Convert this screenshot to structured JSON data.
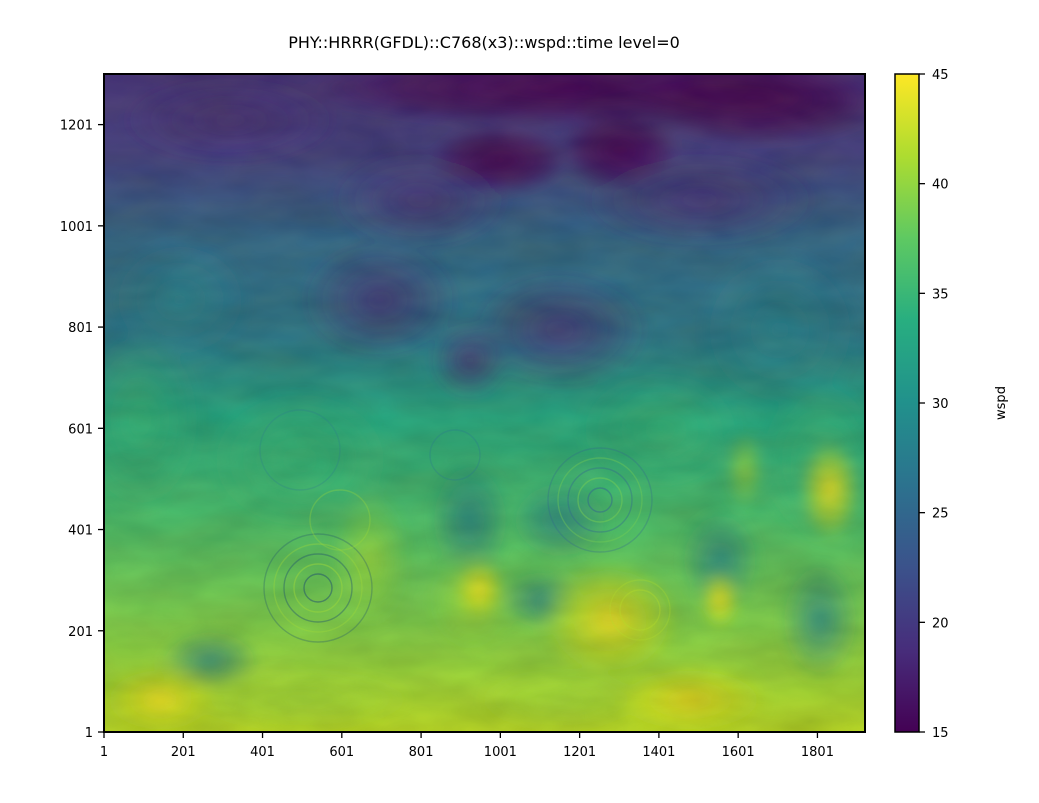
{
  "chart_data": {
    "type": "heatmap",
    "title": "PHY::HRRR(GFDL)::C768(x3)::wspd::time level=0",
    "xlabel": "",
    "ylabel": "",
    "xlim": [
      1,
      1921
    ],
    "ylim": [
      1,
      1301
    ],
    "x_ticks": [
      "1",
      "201",
      "401",
      "601",
      "801",
      "1001",
      "1201",
      "1401",
      "1601",
      "1801"
    ],
    "y_ticks": [
      "1",
      "201",
      "401",
      "601",
      "801",
      "1001",
      "1201"
    ],
    "colorbar": {
      "label": "wspd",
      "range": [
        15,
        45
      ],
      "ticks": [
        "15",
        "20",
        "25",
        "30",
        "35",
        "40",
        "45"
      ],
      "colormap": "viridis"
    },
    "field_description": "wind speed field: low values (15-20) along the top, increasing toward the bottom with maxima near 45; ring-shaped wave patterns near x≈601,y≈301 and x≈1301,y≈501",
    "colors": {
      "low": "#440154",
      "mid": "#21918c",
      "high": "#fde725"
    }
  }
}
